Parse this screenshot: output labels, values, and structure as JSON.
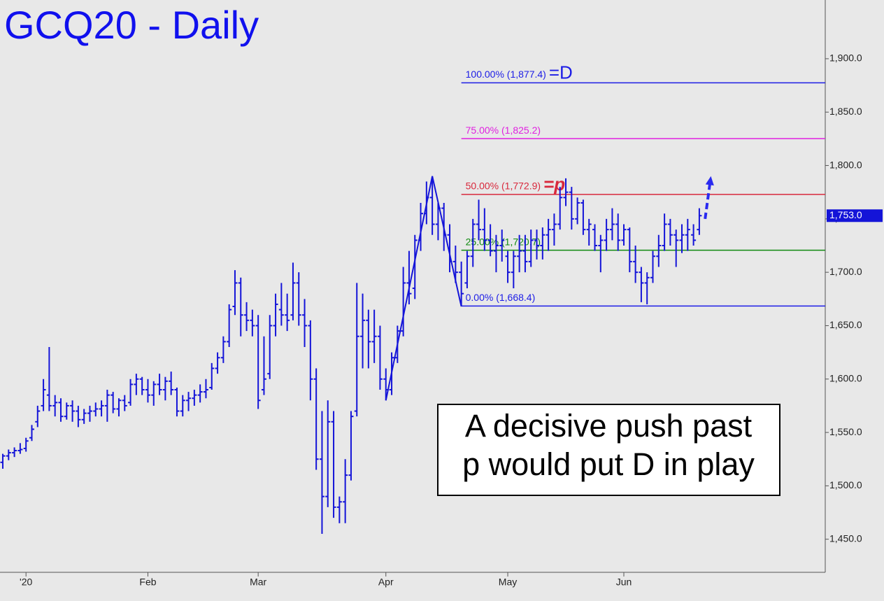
{
  "chart_data": {
    "type": "ohlc",
    "title": "GCQ20 - Daily",
    "color": "#1414d8",
    "xlim": [
      -0.48,
      141.7
    ],
    "xticks": [
      {
        "value": 4,
        "label": "'20"
      },
      {
        "value": 25,
        "label": "Feb"
      },
      {
        "value": 44,
        "label": "Mar"
      },
      {
        "value": 66,
        "label": "Apr"
      },
      {
        "value": 87,
        "label": "May"
      },
      {
        "value": 107,
        "label": "Jun"
      }
    ],
    "ylim": [
      1419,
      1955
    ],
    "yticks": [
      {
        "value": 1450,
        "label": "1,450.0"
      },
      {
        "value": 1500,
        "label": "1,500.0"
      },
      {
        "value": 1550,
        "label": "1,550.0"
      },
      {
        "value": 1600,
        "label": "1,600.0"
      },
      {
        "value": 1650,
        "label": "1,650.0"
      },
      {
        "value": 1700,
        "label": "1,700.0"
      },
      {
        "value": 1750,
        "label": "1,750.0"
      },
      {
        "value": 1800,
        "label": "1,800.0"
      },
      {
        "value": 1850,
        "label": "1,850.0"
      },
      {
        "value": 1900,
        "label": "1,900.0"
      }
    ],
    "ohlc": [
      [
        1522,
        1530,
        1516,
        1528
      ],
      [
        1528,
        1534,
        1524,
        1531
      ],
      [
        1531,
        1536,
        1527,
        1533
      ],
      [
        1533,
        1540,
        1530,
        1534
      ],
      [
        1535,
        1545,
        1532,
        1542
      ],
      [
        1545,
        1557,
        1542,
        1553
      ],
      [
        1560,
        1575,
        1555,
        1570
      ],
      [
        1575,
        1600,
        1570,
        1590
      ],
      [
        1585,
        1630,
        1570,
        1575
      ],
      [
        1575,
        1585,
        1565,
        1578
      ],
      [
        1578,
        1582,
        1560,
        1565
      ],
      [
        1565,
        1578,
        1562,
        1575
      ],
      [
        1575,
        1580,
        1560,
        1570
      ],
      [
        1570,
        1575,
        1555,
        1562
      ],
      [
        1562,
        1572,
        1558,
        1568
      ],
      [
        1568,
        1575,
        1560,
        1570
      ],
      [
        1570,
        1578,
        1565,
        1572
      ],
      [
        1572,
        1580,
        1565,
        1575
      ],
      [
        1575,
        1590,
        1560,
        1585
      ],
      [
        1585,
        1588,
        1568,
        1572
      ],
      [
        1572,
        1582,
        1565,
        1580
      ],
      [
        1580,
        1585,
        1570,
        1575
      ],
      [
        1578,
        1600,
        1575,
        1595
      ],
      [
        1595,
        1605,
        1585,
        1600
      ],
      [
        1600,
        1602,
        1585,
        1590
      ],
      [
        1590,
        1600,
        1578,
        1585
      ],
      [
        1585,
        1598,
        1575,
        1595
      ],
      [
        1595,
        1605,
        1585,
        1590
      ],
      [
        1590,
        1602,
        1580,
        1598
      ],
      [
        1598,
        1607,
        1585,
        1590
      ],
      [
        1590,
        1592,
        1565,
        1570
      ],
      [
        1570,
        1585,
        1565,
        1580
      ],
      [
        1580,
        1588,
        1570,
        1582
      ],
      [
        1582,
        1590,
        1575,
        1585
      ],
      [
        1585,
        1595,
        1578,
        1588
      ],
      [
        1588,
        1600,
        1582,
        1590
      ],
      [
        1592,
        1615,
        1590,
        1610
      ],
      [
        1610,
        1625,
        1605,
        1620
      ],
      [
        1620,
        1640,
        1615,
        1635
      ],
      [
        1635,
        1670,
        1630,
        1665
      ],
      [
        1668,
        1702,
        1660,
        1690
      ],
      [
        1690,
        1695,
        1640,
        1660
      ],
      [
        1660,
        1672,
        1645,
        1655
      ],
      [
        1655,
        1665,
        1640,
        1650
      ],
      [
        1650,
        1660,
        1572,
        1580
      ],
      [
        1590,
        1640,
        1585,
        1600
      ],
      [
        1605,
        1660,
        1600,
        1650
      ],
      [
        1650,
        1680,
        1640,
        1670
      ],
      [
        1665,
        1690,
        1650,
        1660
      ],
      [
        1660,
        1680,
        1645,
        1655
      ],
      [
        1660,
        1709,
        1655,
        1690
      ],
      [
        1690,
        1700,
        1650,
        1660
      ],
      [
        1660,
        1675,
        1630,
        1650
      ],
      [
        1650,
        1655,
        1580,
        1600
      ],
      [
        1600,
        1610,
        1515,
        1525
      ],
      [
        1525,
        1570,
        1455,
        1490
      ],
      [
        1490,
        1580,
        1480,
        1560
      ],
      [
        1560,
        1570,
        1470,
        1480
      ],
      [
        1480,
        1490,
        1465,
        1485
      ],
      [
        1485,
        1525,
        1465,
        1510
      ],
      [
        1510,
        1570,
        1505,
        1565
      ],
      [
        1570,
        1690,
        1565,
        1640
      ],
      [
        1640,
        1680,
        1610,
        1655
      ],
      [
        1655,
        1665,
        1610,
        1635
      ],
      [
        1635,
        1665,
        1615,
        1640
      ],
      [
        1640,
        1650,
        1590,
        1600
      ],
      [
        1600,
        1610,
        1580,
        1590
      ],
      [
        1590,
        1625,
        1585,
        1620
      ],
      [
        1620,
        1650,
        1615,
        1645
      ],
      [
        1645,
        1705,
        1640,
        1690
      ],
      [
        1690,
        1720,
        1670,
        1680
      ],
      [
        1685,
        1735,
        1675,
        1730
      ],
      [
        1730,
        1765,
        1720,
        1755
      ],
      [
        1755,
        1785,
        1745,
        1770
      ],
      [
        1770,
        1790,
        1735,
        1745
      ],
      [
        1745,
        1765,
        1730,
        1760
      ],
      [
        1760,
        1765,
        1720,
        1735
      ],
      [
        1735,
        1745,
        1700,
        1710
      ],
      [
        1710,
        1725,
        1690,
        1700
      ],
      [
        1700,
        1710,
        1668,
        1680
      ],
      [
        1690,
        1720,
        1685,
        1715
      ],
      [
        1715,
        1750,
        1705,
        1745
      ],
      [
        1745,
        1768,
        1730,
        1740
      ],
      [
        1740,
        1760,
        1720,
        1730
      ],
      [
        1730,
        1745,
        1715,
        1720
      ],
      [
        1720,
        1735,
        1700,
        1725
      ],
      [
        1725,
        1740,
        1710,
        1730
      ],
      [
        1715,
        1720,
        1690,
        1700
      ],
      [
        1700,
        1720,
        1685,
        1715
      ],
      [
        1715,
        1735,
        1700,
        1720
      ],
      [
        1720,
        1735,
        1700,
        1710
      ],
      [
        1710,
        1740,
        1705,
        1730
      ],
      [
        1730,
        1740,
        1712,
        1725
      ],
      [
        1725,
        1742,
        1712,
        1735
      ],
      [
        1735,
        1750,
        1720,
        1740
      ],
      [
        1740,
        1755,
        1725,
        1745
      ],
      [
        1745,
        1780,
        1740,
        1770
      ],
      [
        1770,
        1788,
        1762,
        1775
      ],
      [
        1775,
        1780,
        1740,
        1750
      ],
      [
        1750,
        1770,
        1745,
        1765
      ],
      [
        1765,
        1768,
        1735,
        1740
      ],
      [
        1740,
        1750,
        1725,
        1745
      ],
      [
        1740,
        1745,
        1720,
        1725
      ],
      [
        1725,
        1735,
        1700,
        1730
      ],
      [
        1730,
        1750,
        1720,
        1740
      ],
      [
        1740,
        1760,
        1730,
        1745
      ],
      [
        1745,
        1755,
        1720,
        1730
      ],
      [
        1730,
        1745,
        1725,
        1740
      ],
      [
        1740,
        1742,
        1700,
        1710
      ],
      [
        1710,
        1725,
        1690,
        1700
      ],
      [
        1700,
        1705,
        1672,
        1690
      ],
      [
        1690,
        1700,
        1670,
        1695
      ],
      [
        1695,
        1720,
        1690,
        1715
      ],
      [
        1715,
        1735,
        1705,
        1725
      ],
      [
        1725,
        1755,
        1720,
        1745
      ],
      [
        1745,
        1750,
        1725,
        1735
      ],
      [
        1735,
        1740,
        1705,
        1730
      ],
      [
        1730,
        1745,
        1718,
        1735
      ],
      [
        1735,
        1750,
        1720,
        1740
      ],
      [
        1735,
        1745,
        1725,
        1730
      ],
      [
        1740,
        1760,
        1735,
        1753
      ]
    ],
    "swing": {
      "x": [
        66,
        74,
        79
      ],
      "values": [
        1580,
        1790,
        1668
      ],
      "color": "#1414d8"
    },
    "projection": {
      "x": [
        121,
        122
      ],
      "values": [
        1750,
        1790
      ],
      "color": "#2a2af0"
    },
    "levels_start": 79,
    "levels": [
      {
        "label": "100.00% (1,877.4)",
        "value": 1877.4,
        "color": "#1c1ce6",
        "tag": "=D"
      },
      {
        "label": "75.00% (1,825.2)",
        "value": 1825.2,
        "color": "#e020e0",
        "tag": null
      },
      {
        "label": "50.00% (1,772.9)",
        "value": 1772.9,
        "color": "#d8283c",
        "tag": "=p"
      },
      {
        "label": "25.00% (1,720.7)",
        "value": 1720.7,
        "color": "#108a10",
        "tag": null
      },
      {
        "label": "0.00% (1,668.4)",
        "value": 1668.4,
        "color": "#1c1ce6",
        "tag": null
      }
    ],
    "last_price": {
      "value": 1753,
      "label": "1,753.0"
    },
    "note": [
      "A decisive push past",
      "p would put D in play"
    ]
  }
}
